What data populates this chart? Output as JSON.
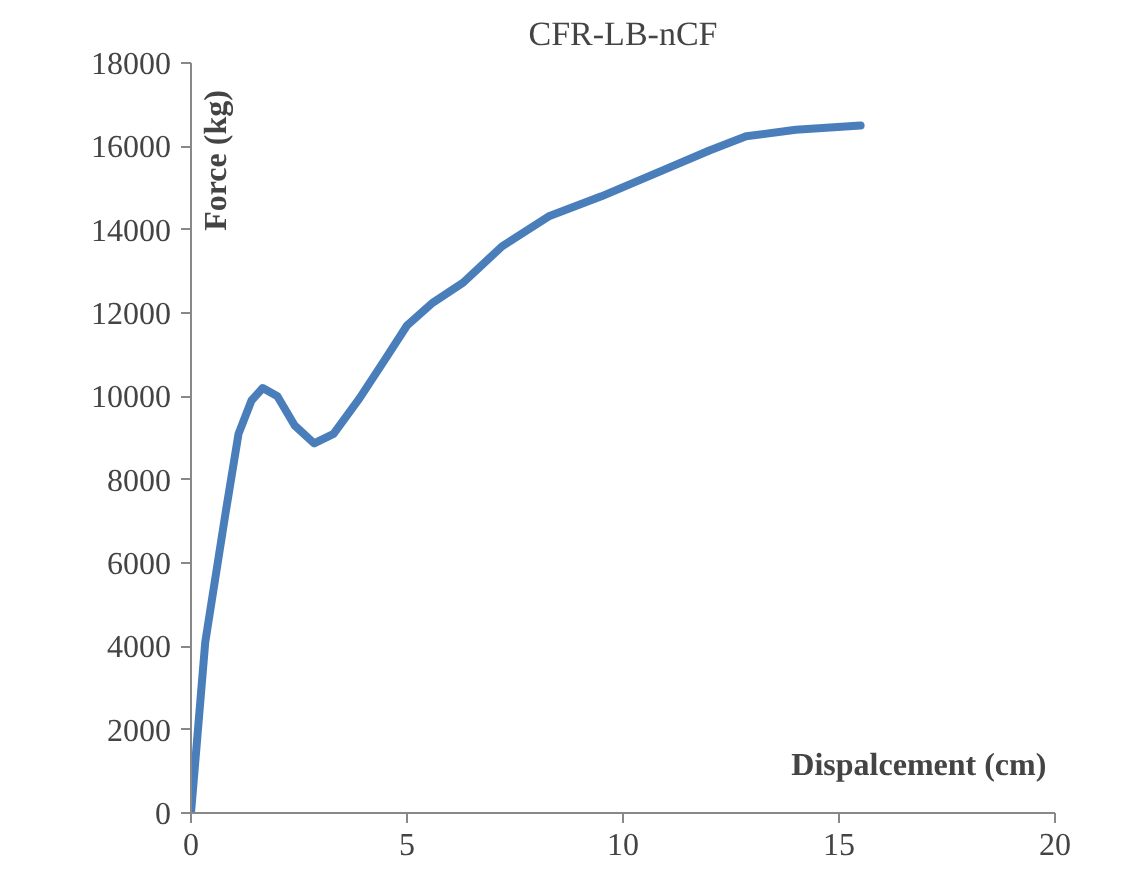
{
  "chart_data": {
    "type": "line",
    "title": "CFR-LB-nCF",
    "xlabel": "Dispalcement (cm)",
    "ylabel": "Force (kg)",
    "series": [
      {
        "color": "#4a7ebb",
        "x": [
          0,
          0.33,
          0.8,
          1.1,
          1.4,
          1.66,
          2.0,
          2.4,
          2.85,
          3.3,
          3.9,
          4.5,
          5.0,
          5.6,
          6.3,
          7.2,
          8.3,
          9.5,
          11.0,
          12.0,
          12.85,
          14.0,
          15.5
        ],
        "values": [
          0,
          4100,
          7200,
          9100,
          9900,
          10200,
          10000,
          9300,
          8870,
          9100,
          9950,
          10900,
          11700,
          12250,
          12730,
          13600,
          14330,
          14800,
          15460,
          15900,
          16240,
          16400,
          16500
        ]
      }
    ],
    "xlim": [
      0,
      20
    ],
    "xticks": [
      0,
      5,
      10,
      15,
      20
    ],
    "ylim": [
      0,
      18000
    ],
    "yticks": [
      0,
      2000,
      4000,
      6000,
      8000,
      10000,
      12000,
      14000,
      16000,
      18000
    ],
    "grid": false,
    "marker": "none",
    "line_style": "solid"
  }
}
